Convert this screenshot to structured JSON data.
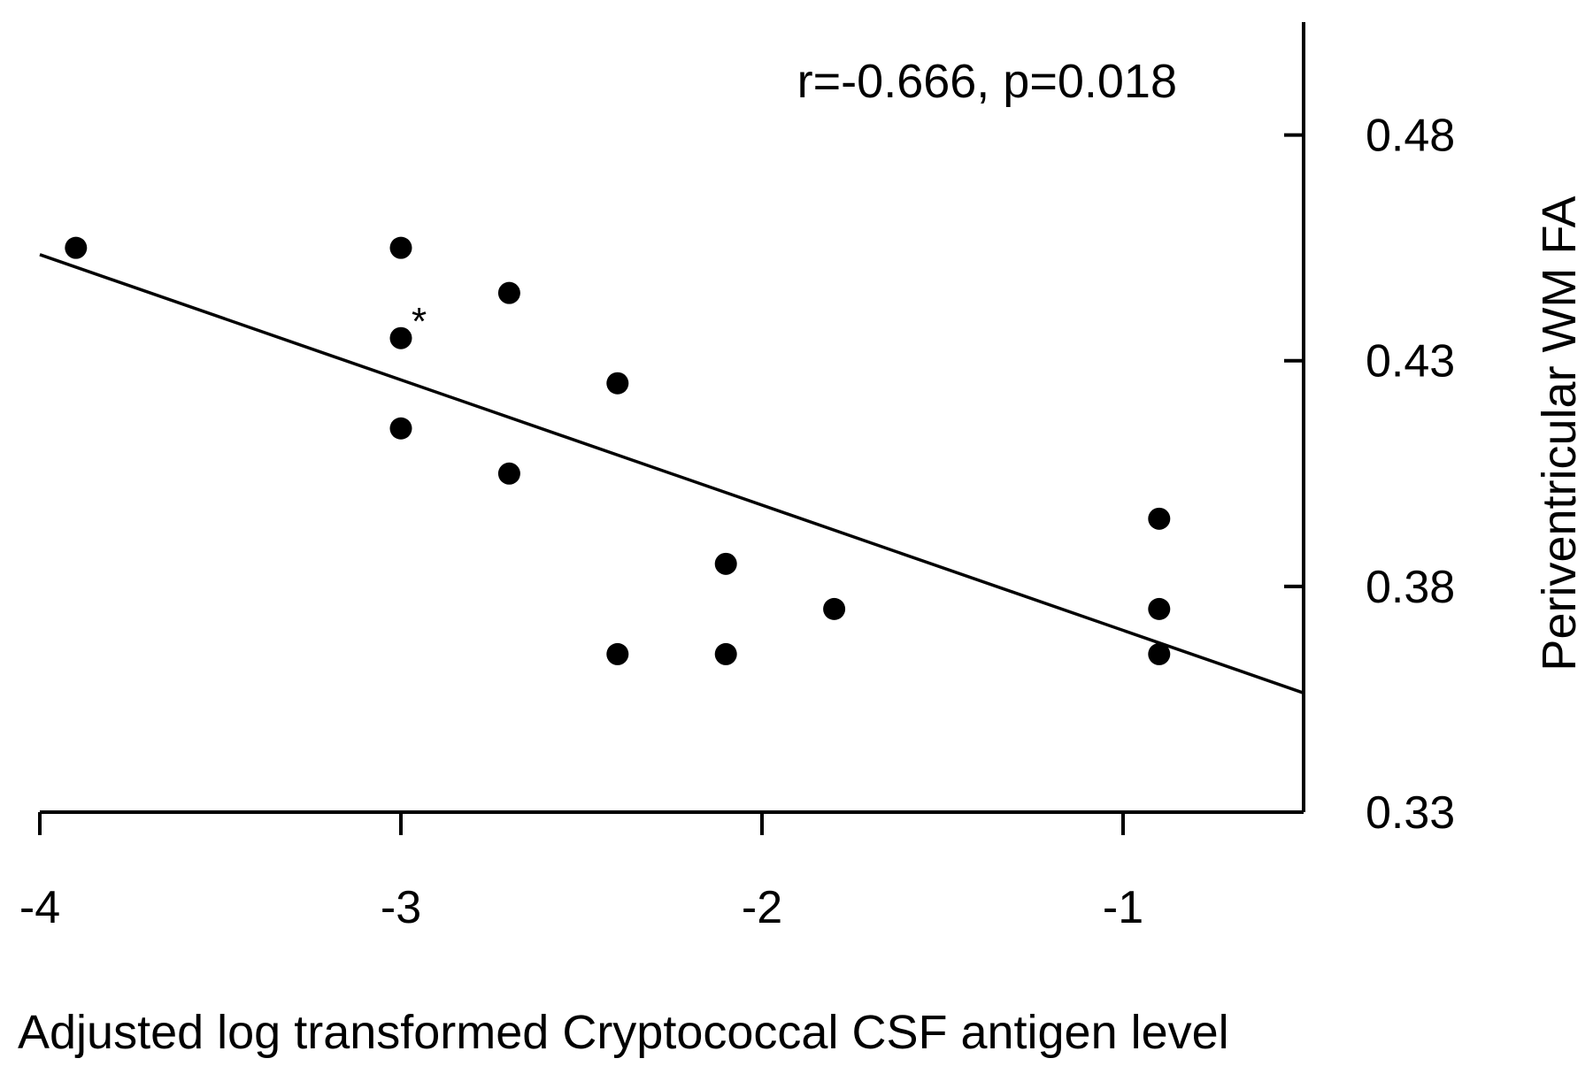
{
  "chart_data": {
    "type": "scatter",
    "title": "",
    "xlabel": "Adjusted log transformed Cryptococcal CSF antigen level",
    "ylabel": "Periventricular WM FA",
    "xlim": [
      -4,
      -0.5
    ],
    "ylim": [
      0.33,
      0.505
    ],
    "x_ticks": [
      -4,
      -3,
      -2,
      -1
    ],
    "x_tick_labels": [
      "-4",
      "-3",
      "-2",
      "-1"
    ],
    "y_ticks": [
      0.33,
      0.38,
      0.43,
      0.48
    ],
    "y_tick_labels": [
      "0.33",
      "0.38",
      "0.43",
      "0.48"
    ],
    "y_axis_position": "right",
    "grid": false,
    "annotation": "r=-0.666, p=0.018",
    "annotation_position": "top-right",
    "marker_note": "*",
    "points": [
      {
        "x": -3.9,
        "y": 0.455
      },
      {
        "x": -3.0,
        "y": 0.455
      },
      {
        "x": -3.0,
        "y": 0.435,
        "label": "*"
      },
      {
        "x": -3.0,
        "y": 0.415
      },
      {
        "x": -2.7,
        "y": 0.445
      },
      {
        "x": -2.7,
        "y": 0.405
      },
      {
        "x": -2.4,
        "y": 0.425
      },
      {
        "x": -2.4,
        "y": 0.365
      },
      {
        "x": -2.1,
        "y": 0.385
      },
      {
        "x": -2.1,
        "y": 0.365
      },
      {
        "x": -1.8,
        "y": 0.375
      },
      {
        "x": -0.9,
        "y": 0.395
      },
      {
        "x": -0.9,
        "y": 0.375
      },
      {
        "x": -0.9,
        "y": 0.365
      }
    ],
    "regression_line": {
      "x": [
        -4,
        -0.5
      ],
      "y": [
        0.4535,
        0.3564
      ]
    },
    "colors": {
      "marker": "#000000",
      "line": "#000000",
      "axis": "#000000"
    }
  }
}
